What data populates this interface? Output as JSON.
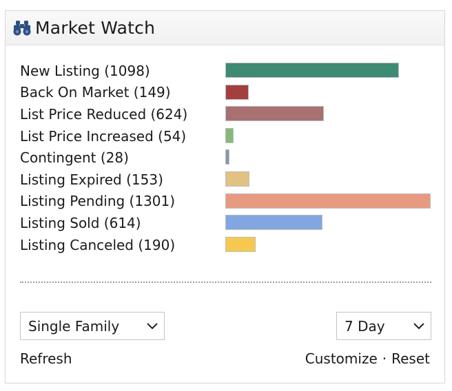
{
  "widget": {
    "title": "Market Watch",
    "icon": "binoculars-icon"
  },
  "rows": [
    {
      "label": "New Listing (1098)",
      "count": 1098,
      "color": "#3e8a73"
    },
    {
      "label": "Back On Market (149)",
      "count": 149,
      "color": "#a3403e"
    },
    {
      "label": "List Price Reduced (624)",
      "count": 624,
      "color": "#a87070"
    },
    {
      "label": "List Price Increased (54)",
      "count": 54,
      "color": "#86b87a"
    },
    {
      "label": "Contingent (28)",
      "count": 28,
      "color": "#8a95ad"
    },
    {
      "label": "Listing Expired (153)",
      "count": 153,
      "color": "#e2c281"
    },
    {
      "label": "Listing Pending (1301)",
      "count": 1301,
      "color": "#e69b80"
    },
    {
      "label": "Listing Sold (614)",
      "count": 614,
      "color": "#82a6e0"
    },
    {
      "label": "Listing Canceled (190)",
      "count": 190,
      "color": "#f5c94f"
    }
  ],
  "controls": {
    "property_type": {
      "selected": "Single Family"
    },
    "period": {
      "selected": "7 Day"
    }
  },
  "footer": {
    "refresh": "Refresh",
    "customize": "Customize",
    "separator": "·",
    "reset": "Reset"
  }
}
